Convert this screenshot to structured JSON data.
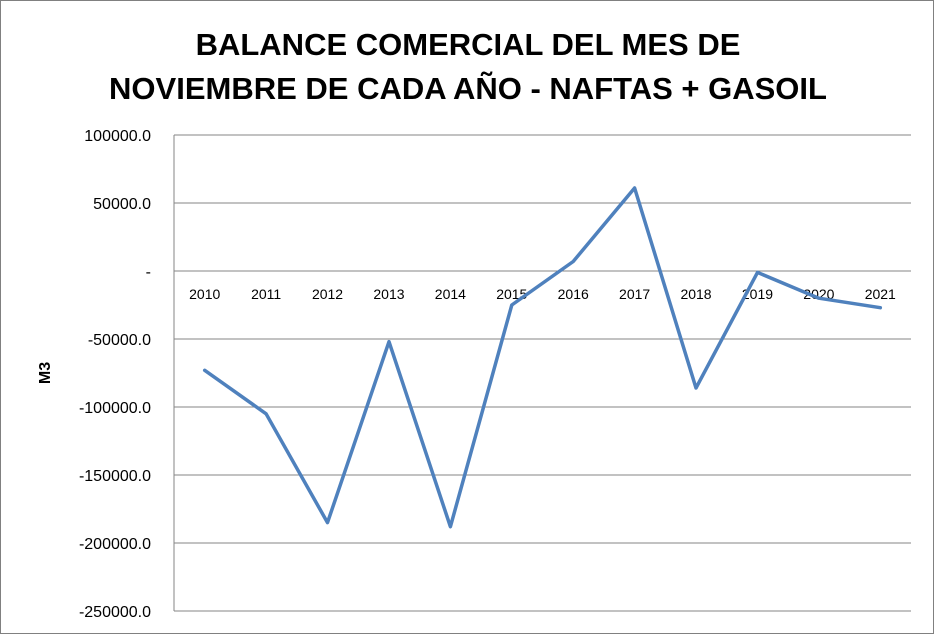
{
  "chart_data": {
    "type": "line",
    "title_line1": "BALANCE COMERCIAL DEL MES DE",
    "title_line2": "NOVIEMBRE DE CADA AÑO - NAFTAS + GASOIL",
    "xlabel": "",
    "ylabel": "M3",
    "ylim": [
      -250000,
      100000
    ],
    "grid": true,
    "legend": "none",
    "line_color": "#4F81BD",
    "yticks": [
      {
        "value": 100000,
        "label": "100000.0"
      },
      {
        "value": 50000,
        "label": "50000.0"
      },
      {
        "value": 0,
        "label": "-"
      },
      {
        "value": -50000,
        "label": "-50000.0"
      },
      {
        "value": -100000,
        "label": "-100000.0"
      },
      {
        "value": -150000,
        "label": "-150000.0"
      },
      {
        "value": -200000,
        "label": "-200000.0"
      },
      {
        "value": -250000,
        "label": "-250000.0"
      }
    ],
    "categories": [
      "2010",
      "2011",
      "2012",
      "2013",
      "2014",
      "2015",
      "2016",
      "2017",
      "2018",
      "2019",
      "2020",
      "2021"
    ],
    "series": [
      {
        "values": [
          -73000,
          -105000,
          -185000,
          -52000,
          -188000,
          -25000,
          7000,
          61000,
          -86000,
          -1000,
          -20000,
          -27000
        ]
      }
    ]
  }
}
